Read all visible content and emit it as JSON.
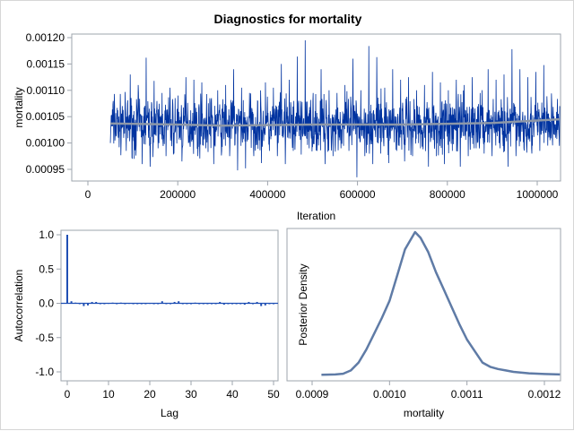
{
  "title": "Diagnostics for mortality",
  "colors": {
    "trace": "#0033a0",
    "trace_light": "#6f8fcc",
    "smooth": "#8c97a8",
    "acf": "#1f4fb4",
    "density": "#5f7ba6",
    "frame": "#9ea4ad"
  },
  "chart_data": [
    {
      "type": "line",
      "panel": "trace",
      "xlabel": "Iteration",
      "ylabel": "mortality",
      "xlim": [
        0,
        1050000
      ],
      "ylim": [
        0.00093,
        0.00121
      ],
      "xticks": [
        "0",
        "200000",
        "400000",
        "600000",
        "800000",
        "1000000"
      ],
      "xtick_values": [
        0,
        200000,
        400000,
        600000,
        800000,
        1000000
      ],
      "yticks": [
        "0.00095",
        "0.00100",
        "0.00105",
        "0.00110",
        "0.00115",
        "0.00120"
      ],
      "ytick_values": [
        0.00095,
        0.001,
        0.00105,
        0.0011,
        0.00115,
        0.0012
      ],
      "iteration_range": [
        50000,
        1050000
      ],
      "samples": [
        0.001,
        0.001093,
        0.00101,
        0.00107,
        0.000985,
        0.00113,
        0.00097,
        0.00111,
        0.00096,
        0.001162,
        0.000955,
        0.001118,
        0.00099,
        0.001095,
        0.000975,
        0.001105,
        0.00098,
        0.00109,
        0.000965,
        0.001125,
        0.001,
        0.00112,
        0.000975,
        0.001115,
        0.00099,
        0.001085,
        0.00096,
        0.0011,
        0.000985,
        0.00111,
        0.000975,
        0.00114,
        0.000948,
        0.001105,
        0.000952,
        0.001095,
        0.00099,
        0.00108,
        0.000962,
        0.001115,
        0.000985,
        0.001105,
        0.000975,
        0.00115,
        0.00096,
        0.00112,
        0.000985,
        0.001164,
        0.000978,
        0.001195,
        0.00099,
        0.001095,
        0.000985,
        0.00114,
        0.00096,
        0.0011,
        0.000975,
        0.001095,
        0.00099,
        0.00111,
        0.000985,
        0.00116,
        0.000935,
        0.0011,
        0.000975,
        0.001184,
        0.00096,
        0.001163,
        0.00098,
        0.001105,
        0.000962,
        0.00114,
        0.000985,
        0.00112,
        0.000965,
        0.001125,
        0.000975,
        0.0011,
        0.00099,
        0.00111,
        0.000955,
        0.001135,
        0.000975,
        0.001115,
        0.00096,
        0.0011,
        0.000985,
        0.00112,
        0.000955,
        0.00111,
        0.000975,
        0.001125,
        0.00099,
        0.001095,
        0.00098,
        0.00114,
        0.000975,
        0.00112,
        0.00099,
        0.00113,
        0.000955,
        0.001178,
        0.000975,
        0.00114,
        0.00099,
        0.001125,
        0.00098,
        0.001135,
        0.000985,
        0.001148,
        0.000995,
        0.001075,
        0.00101,
        0.00107
      ],
      "smooth": [
        [
          50000,
          0.001037
        ],
        [
          200000,
          0.001035
        ],
        [
          300000,
          0.001033
        ],
        [
          500000,
          0.001035
        ],
        [
          700000,
          0.001035
        ],
        [
          900000,
          0.001038
        ],
        [
          1050000,
          0.001045
        ]
      ]
    },
    {
      "type": "bar",
      "panel": "autocorrelation",
      "xlabel": "Lag",
      "ylabel": "Autocorrelation",
      "xlim": [
        0,
        51
      ],
      "ylim": [
        -1.05,
        1.05
      ],
      "xticks": [
        "0",
        "10",
        "20",
        "30",
        "40",
        "50"
      ],
      "xtick_values": [
        0,
        10,
        20,
        30,
        40,
        50
      ],
      "yticks": [
        "-1.0",
        "-0.5",
        "0.0",
        "0.5",
        "1.0"
      ],
      "ytick_values": [
        -1.0,
        -0.5,
        0.0,
        0.5,
        1.0
      ],
      "lags": [
        0,
        1,
        2,
        3,
        4,
        5,
        6,
        7,
        8,
        9,
        10,
        11,
        12,
        13,
        14,
        15,
        16,
        17,
        18,
        19,
        20,
        21,
        22,
        23,
        24,
        25,
        26,
        27,
        28,
        29,
        30,
        31,
        32,
        33,
        34,
        35,
        36,
        37,
        38,
        39,
        40,
        41,
        42,
        43,
        44,
        45,
        46,
        47,
        48,
        49,
        50
      ],
      "values": [
        1.0,
        0.03,
        0.01,
        -0.01,
        -0.04,
        -0.03,
        0.02,
        0.02,
        -0.01,
        0,
        0.005,
        0.01,
        -0.01,
        0.01,
        0,
        0.005,
        0,
        0,
        -0.01,
        0,
        0.005,
        0,
        0,
        0.03,
        0,
        -0.01,
        0.02,
        0.03,
        -0.01,
        0,
        -0.01,
        0.01,
        0,
        0,
        0,
        -0.01,
        -0.01,
        0.02,
        -0.02,
        0,
        0,
        -0.01,
        0,
        -0.02,
        0.02,
        -0.01,
        0.02,
        -0.04,
        -0.03,
        -0.01,
        0
      ]
    },
    {
      "type": "line",
      "panel": "density",
      "xlabel": "mortality",
      "ylabel": "Posterior Density",
      "xlim": [
        0.00087,
        0.001224
      ],
      "xticks": [
        "0.0009",
        "0.0010",
        "0.0011",
        "0.0012"
      ],
      "xtick_values": [
        0.0009,
        0.001,
        0.0011,
        0.0012
      ],
      "x": [
        0.000912,
        0.00093,
        0.00094,
        0.00095,
        0.00096,
        0.00097,
        0.00098,
        0.00099,
        0.001,
        0.00101,
        0.00102,
        0.001033,
        0.00104,
        0.00105,
        0.00106,
        0.00107,
        0.00108,
        0.00109,
        0.0011,
        0.00111,
        0.00112,
        0.00113,
        0.00114,
        0.00115,
        0.00116,
        0.00118,
        0.0012,
        0.00122
      ],
      "density": [
        0.005,
        0.007,
        0.012,
        0.035,
        0.09,
        0.18,
        0.29,
        0.4,
        0.52,
        0.7,
        0.88,
        1.0,
        0.96,
        0.86,
        0.72,
        0.6,
        0.48,
        0.36,
        0.25,
        0.17,
        0.09,
        0.06,
        0.045,
        0.035,
        0.025,
        0.015,
        0.01,
        0.007
      ]
    }
  ]
}
